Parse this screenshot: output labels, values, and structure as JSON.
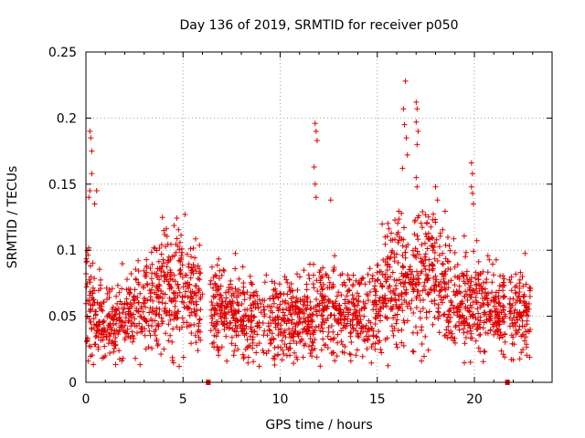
{
  "chart_data": {
    "type": "scatter",
    "title": "Day 136 of 2019, SRMTID for receiver p050",
    "xlabel": "GPS time / hours",
    "ylabel": "SRMTID / TECUs",
    "xlim": [
      0,
      24
    ],
    "ylim": [
      0,
      0.25
    ],
    "xticks": [
      "0",
      "5",
      "10",
      "15",
      "20"
    ],
    "xtick_values": [
      0,
      5,
      10,
      15,
      20
    ],
    "yticks": [
      "0",
      "0.05",
      "0.1",
      "0.15",
      "0.2",
      "0.25"
    ],
    "ytick_values": [
      0,
      0.05,
      0.1,
      0.15,
      0.2,
      0.25
    ],
    "grid": true,
    "marker": "+",
    "series_color": "#e00000",
    "gap_markers_x": [
      6.3,
      21.7
    ],
    "data_segments": [
      {
        "x_start": 0.0,
        "x_end": 6.0
      },
      {
        "x_start": 6.4,
        "x_end": 21.6
      },
      {
        "x_start": 21.8,
        "x_end": 22.9
      }
    ],
    "profile_hours": [
      0,
      0.5,
      1,
      2,
      3,
      4,
      4.5,
      5,
      6,
      7,
      8,
      9,
      10,
      11,
      12,
      13,
      14,
      15,
      15.5,
      16,
      16.5,
      17,
      17.5,
      18,
      19,
      20,
      21,
      22,
      22.9
    ],
    "profile_mean": [
      0.065,
      0.05,
      0.045,
      0.05,
      0.058,
      0.068,
      0.075,
      0.07,
      0.06,
      0.05,
      0.05,
      0.05,
      0.045,
      0.05,
      0.055,
      0.055,
      0.05,
      0.055,
      0.075,
      0.08,
      0.07,
      0.085,
      0.09,
      0.08,
      0.06,
      0.06,
      0.055,
      0.05,
      0.055
    ],
    "outliers": [
      {
        "x": 0.2,
        "y": 0.19
      },
      {
        "x": 0.25,
        "y": 0.185
      },
      {
        "x": 0.3,
        "y": 0.175
      },
      {
        "x": 0.3,
        "y": 0.158
      },
      {
        "x": 0.2,
        "y": 0.145
      },
      {
        "x": 0.15,
        "y": 0.14
      },
      {
        "x": 0.55,
        "y": 0.145
      },
      {
        "x": 0.45,
        "y": 0.135
      },
      {
        "x": 11.8,
        "y": 0.196
      },
      {
        "x": 11.85,
        "y": 0.19
      },
      {
        "x": 11.9,
        "y": 0.183
      },
      {
        "x": 11.75,
        "y": 0.163
      },
      {
        "x": 11.8,
        "y": 0.15
      },
      {
        "x": 11.85,
        "y": 0.14
      },
      {
        "x": 12.6,
        "y": 0.138
      },
      {
        "x": 16.45,
        "y": 0.228
      },
      {
        "x": 16.35,
        "y": 0.207
      },
      {
        "x": 16.4,
        "y": 0.195
      },
      {
        "x": 16.5,
        "y": 0.185
      },
      {
        "x": 16.3,
        "y": 0.162
      },
      {
        "x": 16.55,
        "y": 0.172
      },
      {
        "x": 17.0,
        "y": 0.212
      },
      {
        "x": 17.05,
        "y": 0.207
      },
      {
        "x": 17.0,
        "y": 0.197
      },
      {
        "x": 17.1,
        "y": 0.19
      },
      {
        "x": 17.05,
        "y": 0.18
      },
      {
        "x": 17.0,
        "y": 0.155
      },
      {
        "x": 17.05,
        "y": 0.148
      },
      {
        "x": 18.0,
        "y": 0.148
      },
      {
        "x": 18.1,
        "y": 0.138
      },
      {
        "x": 19.85,
        "y": 0.166
      },
      {
        "x": 19.9,
        "y": 0.158
      },
      {
        "x": 19.85,
        "y": 0.148
      },
      {
        "x": 19.9,
        "y": 0.143
      },
      {
        "x": 19.95,
        "y": 0.135
      },
      {
        "x": 4.8,
        "y": 0.012
      },
      {
        "x": 5.1,
        "y": 0.127
      }
    ],
    "point_count": 2300
  }
}
